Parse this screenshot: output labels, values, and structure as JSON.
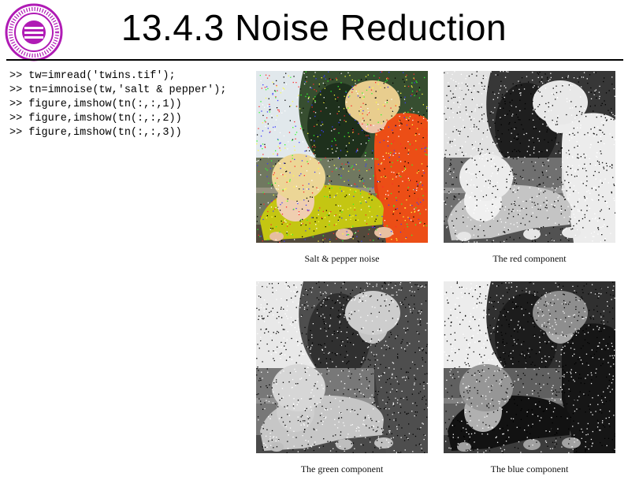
{
  "slide": {
    "title": "13.4.3 Noise Reduction",
    "logo": {
      "icon": "university-seal-icon",
      "color": "#b01bb5"
    }
  },
  "code": {
    "lines": [
      ">> tw=imread('twins.tif');",
      ">> tn=imnoise(tw,'salt & pepper');",
      ">> figure,imshow(tn(:,:,1))",
      ">> figure,imshow(tn(:,:,2))",
      ">> figure,imshow(tn(:,:,3))"
    ]
  },
  "figures": [
    {
      "caption": "Salt & pepper noise",
      "mode": "color"
    },
    {
      "caption": "The red component",
      "mode": "red"
    },
    {
      "caption": "The green component",
      "mode": "green"
    },
    {
      "caption": "The blue component",
      "mode": "blue"
    }
  ]
}
